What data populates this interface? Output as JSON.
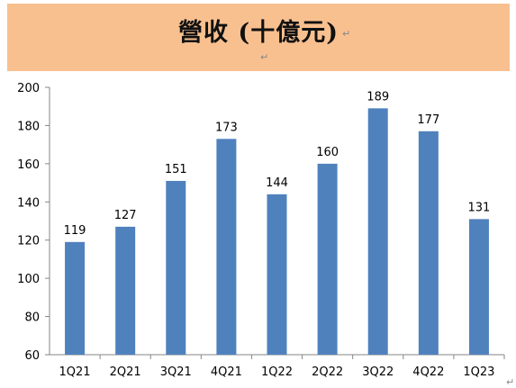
{
  "header": {
    "title": "營收 (十億元)"
  },
  "marks": {
    "para": "↵"
  },
  "chart_data": {
    "type": "bar",
    "title": "營收 (十億元)",
    "categories": [
      "1Q21",
      "2Q21",
      "3Q21",
      "4Q21",
      "1Q22",
      "2Q22",
      "3Q22",
      "4Q22",
      "1Q23"
    ],
    "values": [
      119,
      127,
      151,
      173,
      144,
      160,
      189,
      177,
      131
    ],
    "xlabel": "",
    "ylabel": "",
    "ylim": [
      60,
      200
    ],
    "yticks": [
      60,
      80,
      100,
      120,
      140,
      160,
      180,
      200
    ],
    "grid": false,
    "legend": "none",
    "bar_color": "#4f81bd",
    "data_labels": true
  }
}
